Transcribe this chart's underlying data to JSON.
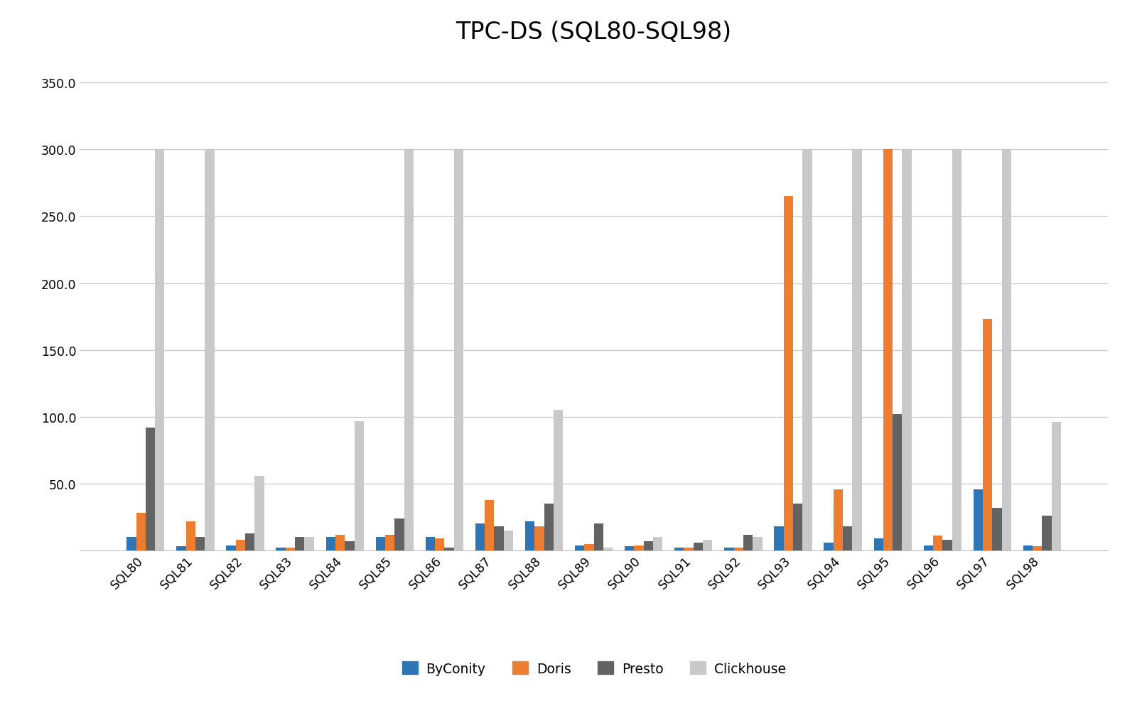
{
  "title": "TPC-DS (SQL80-SQL98)",
  "categories": [
    "SQL80",
    "SQL81",
    "SQL82",
    "SQL83",
    "SQL84",
    "SQL85",
    "SQL86",
    "SQL87",
    "SQL88",
    "SQL89",
    "SQL90",
    "SQL91",
    "SQL92",
    "SQL93",
    "SQL94",
    "SQL95",
    "SQL96",
    "SQL97",
    "SQL98"
  ],
  "series": {
    "ByConity": [
      10,
      3,
      4,
      2,
      10,
      10,
      10,
      20,
      22,
      4,
      3,
      2,
      2,
      18,
      6,
      9,
      4,
      46,
      4
    ],
    "Doris": [
      28,
      22,
      8,
      2,
      12,
      12,
      9,
      38,
      18,
      5,
      4,
      2,
      2,
      265,
      46,
      300,
      11,
      173,
      3
    ],
    "Presto": [
      92,
      10,
      13,
      10,
      7,
      24,
      2,
      18,
      35,
      20,
      7,
      6,
      12,
      35,
      18,
      102,
      8,
      32,
      26
    ],
    "Clickhouse": [
      300,
      300,
      56,
      10,
      97,
      300,
      300,
      15,
      105,
      2,
      10,
      8,
      10,
      300,
      300,
      300,
      300,
      300,
      96
    ]
  },
  "colors": {
    "ByConity": "#2E75B6",
    "Doris": "#ED7D31",
    "Presto": "#636363",
    "Clickhouse": "#C9C9C9"
  },
  "ylim": [
    0,
    370
  ],
  "yticks": [
    50.0,
    100.0,
    150.0,
    200.0,
    250.0,
    300.0,
    350.0
  ],
  "background_color": "#FFFFFF",
  "grid_color": "#C8C8C8",
  "title_fontsize": 24,
  "bar_width": 0.19,
  "legend_labels": [
    "ByConity",
    "Doris",
    "Presto",
    "Clickhouse"
  ]
}
